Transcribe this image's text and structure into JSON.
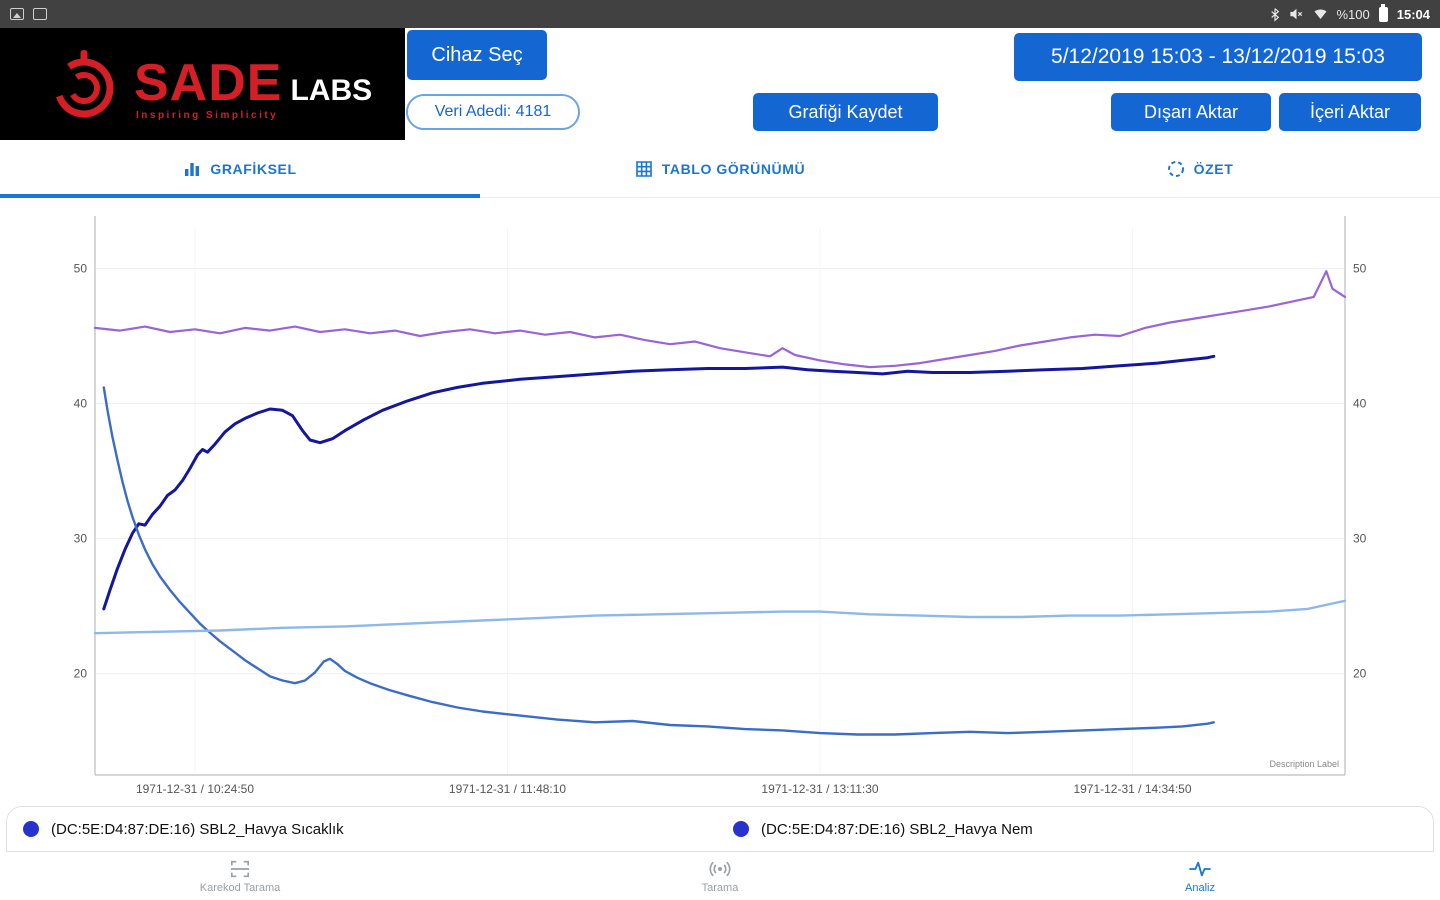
{
  "status_bar": {
    "time": "15:04",
    "battery_label": "%100"
  },
  "header": {
    "logo": {
      "name": "SADE",
      "suffix": "LABS",
      "tagline": "Inspiring Simplicity"
    },
    "buttons": {
      "select_device": "Cihaz Seç",
      "data_count": "Veri Adedi: 4181",
      "save_graph": "Grafiği Kaydet",
      "date_range": "5/12/2019 15:03 - 13/12/2019 15:03",
      "export": "Dışarı Aktar",
      "import": "İçeri Aktar"
    }
  },
  "tabs": [
    {
      "label": "GRAFİKSEL",
      "active": true
    },
    {
      "label": "TABLO GÖRÜNÜMÜ",
      "active": false
    },
    {
      "label": "ÖZET",
      "active": false
    }
  ],
  "chart_data": {
    "type": "line",
    "title": "",
    "xlabel": "",
    "ylabel": "",
    "ylim": [
      12.5,
      53
    ],
    "y_ticks": [
      20,
      30,
      40,
      50
    ],
    "x_ticks": [
      "1971-12-31 / 10:24:50",
      "1971-12-31 / 11:48:10",
      "1971-12-31 / 13:11:30",
      "1971-12-31 / 14:34:50"
    ],
    "x_tick_pos": [
      0.08,
      0.33,
      0.58,
      0.83
    ],
    "annotation": "Description Label",
    "grid": true,
    "legend_position": "bottom",
    "series": [
      {
        "name": "humidity-purple",
        "color": "#9a63d8",
        "width": 2.2,
        "points": [
          [
            0,
            45.6
          ],
          [
            0.02,
            45.4
          ],
          [
            0.04,
            45.7
          ],
          [
            0.06,
            45.3
          ],
          [
            0.08,
            45.5
          ],
          [
            0.1,
            45.2
          ],
          [
            0.12,
            45.6
          ],
          [
            0.14,
            45.4
          ],
          [
            0.16,
            45.7
          ],
          [
            0.18,
            45.3
          ],
          [
            0.2,
            45.5
          ],
          [
            0.22,
            45.2
          ],
          [
            0.24,
            45.4
          ],
          [
            0.26,
            45.0
          ],
          [
            0.28,
            45.3
          ],
          [
            0.3,
            45.5
          ],
          [
            0.32,
            45.2
          ],
          [
            0.34,
            45.4
          ],
          [
            0.36,
            45.1
          ],
          [
            0.38,
            45.3
          ],
          [
            0.4,
            44.9
          ],
          [
            0.42,
            45.1
          ],
          [
            0.44,
            44.7
          ],
          [
            0.46,
            44.4
          ],
          [
            0.48,
            44.6
          ],
          [
            0.5,
            44.1
          ],
          [
            0.52,
            43.8
          ],
          [
            0.54,
            43.5
          ],
          [
            0.55,
            44.1
          ],
          [
            0.56,
            43.6
          ],
          [
            0.58,
            43.2
          ],
          [
            0.6,
            42.9
          ],
          [
            0.62,
            42.7
          ],
          [
            0.64,
            42.8
          ],
          [
            0.66,
            43.0
          ],
          [
            0.68,
            43.3
          ],
          [
            0.7,
            43.6
          ],
          [
            0.72,
            43.9
          ],
          [
            0.74,
            44.3
          ],
          [
            0.76,
            44.6
          ],
          [
            0.78,
            44.9
          ],
          [
            0.8,
            45.1
          ],
          [
            0.82,
            45.0
          ],
          [
            0.84,
            45.6
          ],
          [
            0.86,
            46.0
          ],
          [
            0.88,
            46.3
          ],
          [
            0.9,
            46.6
          ],
          [
            0.92,
            46.9
          ],
          [
            0.94,
            47.2
          ],
          [
            0.96,
            47.6
          ],
          [
            0.975,
            47.9
          ],
          [
            0.985,
            49.8
          ],
          [
            0.99,
            48.5
          ],
          [
            1.0,
            47.9
          ]
        ]
      },
      {
        "name": "temperature-navy",
        "color": "#15169e",
        "width": 3,
        "points": [
          [
            0.007,
            24.8
          ],
          [
            0.012,
            26.2
          ],
          [
            0.018,
            27.8
          ],
          [
            0.024,
            29.2
          ],
          [
            0.03,
            30.4
          ],
          [
            0.035,
            31.1
          ],
          [
            0.04,
            31.0
          ],
          [
            0.046,
            31.8
          ],
          [
            0.052,
            32.4
          ],
          [
            0.058,
            33.2
          ],
          [
            0.064,
            33.6
          ],
          [
            0.07,
            34.3
          ],
          [
            0.076,
            35.2
          ],
          [
            0.082,
            36.2
          ],
          [
            0.086,
            36.6
          ],
          [
            0.09,
            36.4
          ],
          [
            0.096,
            37.0
          ],
          [
            0.104,
            37.9
          ],
          [
            0.112,
            38.5
          ],
          [
            0.12,
            38.9
          ],
          [
            0.13,
            39.3
          ],
          [
            0.14,
            39.6
          ],
          [
            0.15,
            39.5
          ],
          [
            0.158,
            39.1
          ],
          [
            0.166,
            38.0
          ],
          [
            0.172,
            37.3
          ],
          [
            0.18,
            37.1
          ],
          [
            0.19,
            37.4
          ],
          [
            0.2,
            38.0
          ],
          [
            0.215,
            38.8
          ],
          [
            0.23,
            39.5
          ],
          [
            0.25,
            40.2
          ],
          [
            0.27,
            40.8
          ],
          [
            0.29,
            41.2
          ],
          [
            0.31,
            41.5
          ],
          [
            0.34,
            41.8
          ],
          [
            0.37,
            42.0
          ],
          [
            0.4,
            42.2
          ],
          [
            0.43,
            42.4
          ],
          [
            0.46,
            42.5
          ],
          [
            0.49,
            42.6
          ],
          [
            0.52,
            42.6
          ],
          [
            0.55,
            42.7
          ],
          [
            0.57,
            42.5
          ],
          [
            0.59,
            42.4
          ],
          [
            0.61,
            42.3
          ],
          [
            0.63,
            42.2
          ],
          [
            0.65,
            42.4
          ],
          [
            0.67,
            42.3
          ],
          [
            0.7,
            42.3
          ],
          [
            0.73,
            42.4
          ],
          [
            0.76,
            42.5
          ],
          [
            0.79,
            42.6
          ],
          [
            0.82,
            42.8
          ],
          [
            0.85,
            43.0
          ],
          [
            0.87,
            43.2
          ],
          [
            0.89,
            43.4
          ],
          [
            0.895,
            43.5
          ]
        ]
      },
      {
        "name": "temperature-blue",
        "color": "#3b6cc7",
        "width": 2.4,
        "points": [
          [
            0.007,
            41.2
          ],
          [
            0.01,
            39.5
          ],
          [
            0.014,
            37.5
          ],
          [
            0.018,
            35.8
          ],
          [
            0.022,
            34.2
          ],
          [
            0.026,
            32.8
          ],
          [
            0.03,
            31.6
          ],
          [
            0.035,
            30.3
          ],
          [
            0.04,
            29.2
          ],
          [
            0.046,
            28.1
          ],
          [
            0.052,
            27.2
          ],
          [
            0.06,
            26.2
          ],
          [
            0.068,
            25.3
          ],
          [
            0.076,
            24.5
          ],
          [
            0.084,
            23.7
          ],
          [
            0.09,
            23.2
          ],
          [
            0.1,
            22.4
          ],
          [
            0.11,
            21.7
          ],
          [
            0.12,
            21.0
          ],
          [
            0.13,
            20.4
          ],
          [
            0.14,
            19.8
          ],
          [
            0.15,
            19.5
          ],
          [
            0.16,
            19.3
          ],
          [
            0.168,
            19.5
          ],
          [
            0.176,
            20.1
          ],
          [
            0.183,
            20.9
          ],
          [
            0.188,
            21.1
          ],
          [
            0.194,
            20.7
          ],
          [
            0.2,
            20.2
          ],
          [
            0.21,
            19.7
          ],
          [
            0.22,
            19.3
          ],
          [
            0.235,
            18.8
          ],
          [
            0.25,
            18.4
          ],
          [
            0.27,
            17.9
          ],
          [
            0.29,
            17.5
          ],
          [
            0.31,
            17.2
          ],
          [
            0.34,
            16.9
          ],
          [
            0.37,
            16.6
          ],
          [
            0.4,
            16.4
          ],
          [
            0.43,
            16.5
          ],
          [
            0.46,
            16.2
          ],
          [
            0.49,
            16.1
          ],
          [
            0.52,
            15.9
          ],
          [
            0.55,
            15.8
          ],
          [
            0.58,
            15.6
          ],
          [
            0.61,
            15.5
          ],
          [
            0.64,
            15.5
          ],
          [
            0.67,
            15.6
          ],
          [
            0.7,
            15.7
          ],
          [
            0.73,
            15.6
          ],
          [
            0.76,
            15.7
          ],
          [
            0.79,
            15.8
          ],
          [
            0.82,
            15.9
          ],
          [
            0.85,
            16.0
          ],
          [
            0.87,
            16.1
          ],
          [
            0.89,
            16.3
          ],
          [
            0.895,
            16.4
          ]
        ]
      },
      {
        "name": "humidity-lightblue",
        "color": "#8fb7ea",
        "width": 2.4,
        "points": [
          [
            0,
            23.0
          ],
          [
            0.05,
            23.1
          ],
          [
            0.1,
            23.2
          ],
          [
            0.15,
            23.4
          ],
          [
            0.2,
            23.5
          ],
          [
            0.25,
            23.7
          ],
          [
            0.3,
            23.9
          ],
          [
            0.35,
            24.1
          ],
          [
            0.4,
            24.3
          ],
          [
            0.45,
            24.4
          ],
          [
            0.5,
            24.5
          ],
          [
            0.55,
            24.6
          ],
          [
            0.58,
            24.6
          ],
          [
            0.62,
            24.4
          ],
          [
            0.66,
            24.3
          ],
          [
            0.7,
            24.2
          ],
          [
            0.74,
            24.2
          ],
          [
            0.78,
            24.3
          ],
          [
            0.82,
            24.3
          ],
          [
            0.86,
            24.4
          ],
          [
            0.9,
            24.5
          ],
          [
            0.94,
            24.6
          ],
          [
            0.97,
            24.8
          ],
          [
            0.99,
            25.2
          ],
          [
            1.0,
            25.4
          ]
        ]
      }
    ]
  },
  "legend": [
    {
      "label": "(DC:5E:D4:87:DE:16) SBL2_Havya Sıcaklık",
      "color": "#2733cc"
    },
    {
      "label": "(DC:5E:D4:87:DE:16) SBL2_Havya Nem",
      "color": "#2733cc"
    }
  ],
  "bottom_nav": [
    {
      "label": "Karekod Tarama",
      "active": false
    },
    {
      "label": "Tarama",
      "active": false
    },
    {
      "label": "Analiz",
      "active": true
    }
  ],
  "colors": {
    "accent": "#1467d2",
    "tab_blue": "#1976d2",
    "logo_red": "#d41f26"
  }
}
